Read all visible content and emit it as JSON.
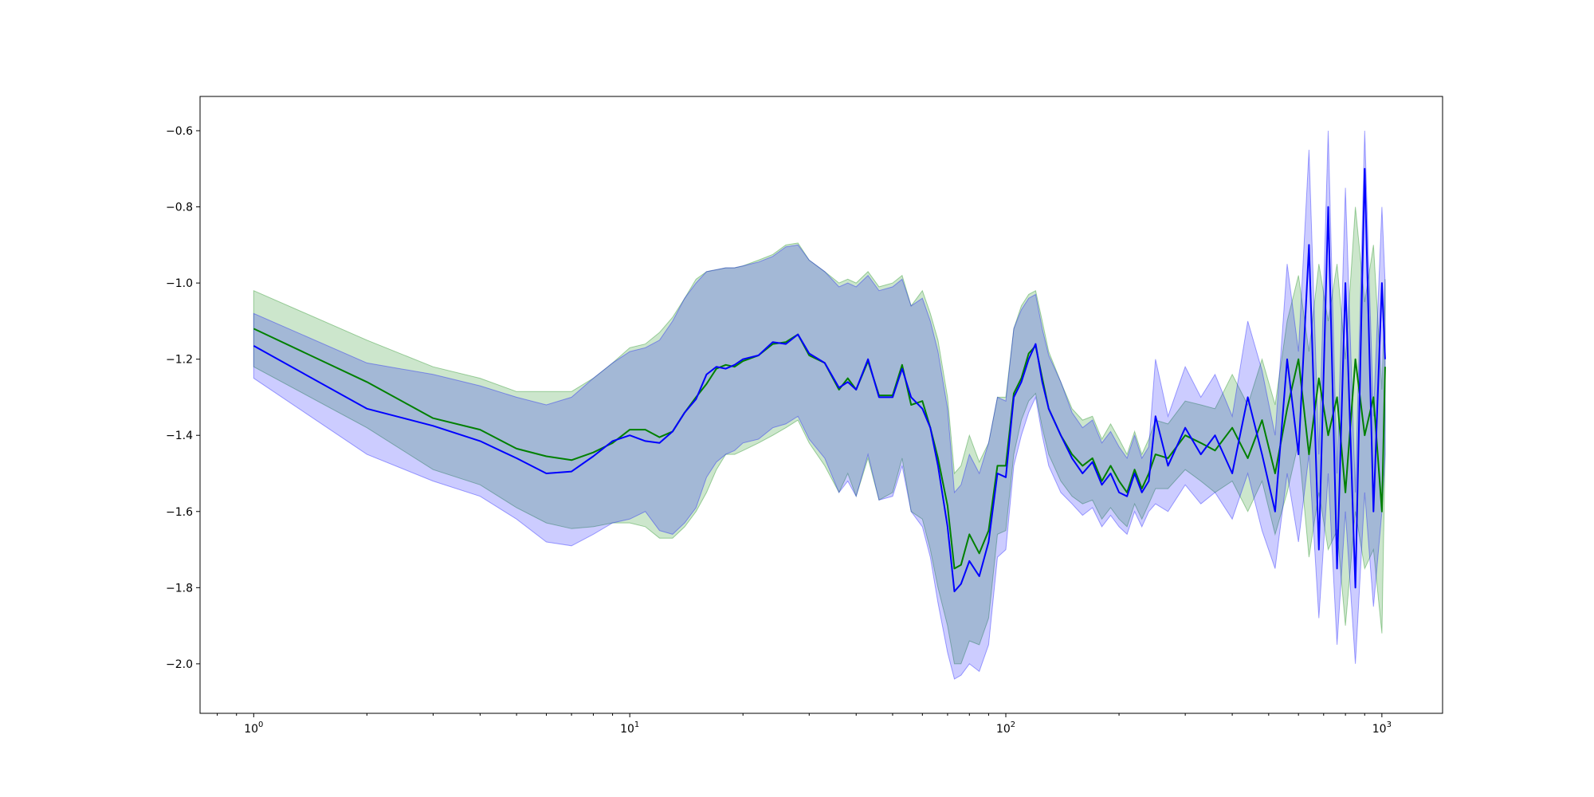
{
  "chart_data": {
    "type": "line",
    "title": "",
    "xlabel": "",
    "ylabel": "",
    "xscale": "log",
    "xlim": [
      0.72,
      1450
    ],
    "ylim": [
      -2.13,
      -0.51
    ],
    "grid": false,
    "legend": "none",
    "x_ticks": [
      {
        "value": 1,
        "base": "10",
        "exp": "0"
      },
      {
        "value": 10,
        "base": "10",
        "exp": "1"
      },
      {
        "value": 100,
        "base": "10",
        "exp": "2"
      },
      {
        "value": 1000,
        "base": "10",
        "exp": "3"
      }
    ],
    "y_ticks": [
      {
        "value": -2.0,
        "label": "−2.0"
      },
      {
        "value": -1.8,
        "label": "−1.8"
      },
      {
        "value": -1.6,
        "label": "−1.6"
      },
      {
        "value": -1.4,
        "label": "−1.4"
      },
      {
        "value": -1.2,
        "label": "−1.2"
      },
      {
        "value": -1.0,
        "label": "−1.0"
      },
      {
        "value": -0.8,
        "label": "−0.8"
      },
      {
        "value": -0.6,
        "label": "−0.6"
      }
    ],
    "series": [
      {
        "color": "#008000",
        "band_color": "#008000",
        "band_opacity": 0.2,
        "x": [
          1,
          2,
          3,
          4,
          5,
          6,
          7,
          8,
          9,
          10,
          11,
          12,
          13,
          14,
          15,
          16,
          17,
          18,
          19,
          20,
          22,
          24,
          26,
          28,
          30,
          33,
          36,
          38,
          40,
          43,
          46,
          50,
          53,
          56,
          60,
          63,
          66,
          70,
          73,
          76,
          80,
          85,
          90,
          95,
          100,
          105,
          110,
          115,
          120,
          125,
          130,
          140,
          150,
          160,
          170,
          180,
          190,
          200,
          210,
          220,
          230,
          240,
          250,
          270,
          300,
          330,
          360,
          400,
          440,
          480,
          520,
          560,
          600,
          640,
          680,
          720,
          760,
          800,
          850,
          900,
          950,
          1000,
          1020
        ],
        "y": [
          -1.12,
          -1.26,
          -1.355,
          -1.385,
          -1.435,
          -1.455,
          -1.465,
          -1.445,
          -1.42,
          -1.385,
          -1.385,
          -1.405,
          -1.39,
          -1.34,
          -1.3,
          -1.265,
          -1.225,
          -1.215,
          -1.22,
          -1.205,
          -1.19,
          -1.16,
          -1.155,
          -1.135,
          -1.19,
          -1.21,
          -1.28,
          -1.25,
          -1.28,
          -1.205,
          -1.295,
          -1.295,
          -1.215,
          -1.32,
          -1.31,
          -1.38,
          -1.46,
          -1.585,
          -1.75,
          -1.74,
          -1.66,
          -1.71,
          -1.65,
          -1.48,
          -1.48,
          -1.29,
          -1.25,
          -1.185,
          -1.165,
          -1.25,
          -1.33,
          -1.4,
          -1.45,
          -1.48,
          -1.46,
          -1.52,
          -1.48,
          -1.52,
          -1.55,
          -1.49,
          -1.54,
          -1.5,
          -1.45,
          -1.46,
          -1.4,
          -1.42,
          -1.44,
          -1.38,
          -1.46,
          -1.36,
          -1.5,
          -1.33,
          -1.2,
          -1.45,
          -1.25,
          -1.4,
          -1.3,
          -1.55,
          -1.2,
          -1.4,
          -1.3,
          -1.6,
          -1.22
        ],
        "lower": [
          -1.22,
          -1.38,
          -1.49,
          -1.53,
          -1.59,
          -1.63,
          -1.645,
          -1.64,
          -1.63,
          -1.63,
          -1.64,
          -1.67,
          -1.67,
          -1.64,
          -1.6,
          -1.55,
          -1.49,
          -1.45,
          -1.45,
          -1.44,
          -1.42,
          -1.4,
          -1.38,
          -1.36,
          -1.42,
          -1.48,
          -1.55,
          -1.5,
          -1.56,
          -1.46,
          -1.57,
          -1.55,
          -1.46,
          -1.6,
          -1.62,
          -1.7,
          -1.8,
          -1.9,
          -2.0,
          -2.0,
          -1.94,
          -1.95,
          -1.88,
          -1.66,
          -1.65,
          -1.45,
          -1.36,
          -1.31,
          -1.29,
          -1.38,
          -1.45,
          -1.52,
          -1.56,
          -1.58,
          -1.57,
          -1.62,
          -1.59,
          -1.62,
          -1.64,
          -1.58,
          -1.62,
          -1.58,
          -1.54,
          -1.54,
          -1.49,
          -1.52,
          -1.55,
          -1.52,
          -1.6,
          -1.52,
          -1.66,
          -1.55,
          -1.42,
          -1.72,
          -1.55,
          -1.7,
          -1.65,
          -1.9,
          -1.6,
          -1.75,
          -1.7,
          -1.92,
          -1.45
        ],
        "upper": [
          -1.02,
          -1.15,
          -1.22,
          -1.25,
          -1.285,
          -1.285,
          -1.285,
          -1.25,
          -1.21,
          -1.17,
          -1.16,
          -1.13,
          -1.09,
          -1.04,
          -0.99,
          -0.97,
          -0.965,
          -0.96,
          -0.96,
          -0.955,
          -0.94,
          -0.925,
          -0.9,
          -0.895,
          -0.94,
          -0.97,
          -1.0,
          -0.99,
          -1.0,
          -0.97,
          -1.01,
          -1.0,
          -0.98,
          -1.06,
          -1.02,
          -1.08,
          -1.15,
          -1.3,
          -1.5,
          -1.48,
          -1.4,
          -1.47,
          -1.42,
          -1.3,
          -1.3,
          -1.12,
          -1.06,
          -1.03,
          -1.02,
          -1.1,
          -1.18,
          -1.26,
          -1.33,
          -1.36,
          -1.35,
          -1.41,
          -1.37,
          -1.41,
          -1.45,
          -1.39,
          -1.45,
          -1.41,
          -1.36,
          -1.37,
          -1.31,
          -1.32,
          -1.33,
          -1.24,
          -1.32,
          -1.2,
          -1.32,
          -1.1,
          -0.98,
          -1.18,
          -0.95,
          -1.1,
          -0.95,
          -1.2,
          -0.8,
          -1.05,
          -0.9,
          -1.28,
          -0.99
        ]
      },
      {
        "color": "#0000ff",
        "band_color": "#0000ff",
        "band_opacity": 0.2,
        "x": [
          1,
          2,
          3,
          4,
          5,
          6,
          7,
          8,
          9,
          10,
          11,
          12,
          13,
          14,
          15,
          16,
          17,
          18,
          19,
          20,
          22,
          24,
          26,
          28,
          30,
          33,
          36,
          38,
          40,
          43,
          46,
          50,
          53,
          56,
          60,
          63,
          66,
          70,
          73,
          76,
          80,
          85,
          90,
          95,
          100,
          105,
          110,
          115,
          120,
          125,
          130,
          140,
          150,
          160,
          170,
          180,
          190,
          200,
          210,
          220,
          230,
          240,
          250,
          270,
          300,
          330,
          360,
          400,
          440,
          480,
          520,
          560,
          600,
          640,
          680,
          720,
          760,
          800,
          850,
          900,
          950,
          1000,
          1020
        ],
        "y": [
          -1.165,
          -1.33,
          -1.375,
          -1.415,
          -1.46,
          -1.5,
          -1.495,
          -1.455,
          -1.415,
          -1.4,
          -1.415,
          -1.42,
          -1.39,
          -1.34,
          -1.305,
          -1.24,
          -1.22,
          -1.225,
          -1.215,
          -1.2,
          -1.19,
          -1.155,
          -1.16,
          -1.135,
          -1.185,
          -1.21,
          -1.275,
          -1.26,
          -1.28,
          -1.2,
          -1.3,
          -1.3,
          -1.225,
          -1.3,
          -1.33,
          -1.38,
          -1.48,
          -1.64,
          -1.81,
          -1.79,
          -1.73,
          -1.77,
          -1.68,
          -1.5,
          -1.51,
          -1.3,
          -1.26,
          -1.2,
          -1.16,
          -1.26,
          -1.33,
          -1.4,
          -1.46,
          -1.5,
          -1.47,
          -1.53,
          -1.5,
          -1.55,
          -1.56,
          -1.5,
          -1.55,
          -1.52,
          -1.35,
          -1.48,
          -1.38,
          -1.45,
          -1.4,
          -1.5,
          -1.3,
          -1.45,
          -1.6,
          -1.2,
          -1.45,
          -0.9,
          -1.7,
          -0.8,
          -1.75,
          -1.0,
          -1.8,
          -0.7,
          -1.6,
          -1.0,
          -1.2
        ],
        "lower": [
          -1.25,
          -1.45,
          -1.52,
          -1.56,
          -1.62,
          -1.68,
          -1.69,
          -1.66,
          -1.63,
          -1.62,
          -1.6,
          -1.65,
          -1.66,
          -1.63,
          -1.59,
          -1.51,
          -1.47,
          -1.45,
          -1.44,
          -1.42,
          -1.41,
          -1.38,
          -1.37,
          -1.35,
          -1.41,
          -1.46,
          -1.55,
          -1.52,
          -1.56,
          -1.45,
          -1.57,
          -1.56,
          -1.48,
          -1.6,
          -1.64,
          -1.72,
          -1.84,
          -1.97,
          -2.04,
          -2.03,
          -2.0,
          -2.02,
          -1.95,
          -1.72,
          -1.7,
          -1.48,
          -1.4,
          -1.34,
          -1.3,
          -1.4,
          -1.48,
          -1.55,
          -1.58,
          -1.61,
          -1.59,
          -1.64,
          -1.61,
          -1.64,
          -1.66,
          -1.6,
          -1.64,
          -1.6,
          -1.58,
          -1.6,
          -1.53,
          -1.58,
          -1.55,
          -1.62,
          -1.5,
          -1.65,
          -1.75,
          -1.5,
          -1.68,
          -1.45,
          -1.88,
          -1.5,
          -1.95,
          -1.6,
          -2.0,
          -1.55,
          -1.85,
          -1.6,
          -1.45
        ],
        "upper": [
          -1.08,
          -1.21,
          -1.24,
          -1.27,
          -1.3,
          -1.32,
          -1.3,
          -1.25,
          -1.21,
          -1.18,
          -1.17,
          -1.15,
          -1.1,
          -1.04,
          -1.0,
          -0.97,
          -0.965,
          -0.96,
          -0.96,
          -0.955,
          -0.945,
          -0.93,
          -0.905,
          -0.9,
          -0.94,
          -0.97,
          -1.01,
          -1.0,
          -1.01,
          -0.98,
          -1.02,
          -1.01,
          -0.99,
          -1.06,
          -1.04,
          -1.1,
          -1.18,
          -1.33,
          -1.55,
          -1.53,
          -1.45,
          -1.5,
          -1.42,
          -1.3,
          -1.31,
          -1.12,
          -1.07,
          -1.04,
          -1.03,
          -1.12,
          -1.19,
          -1.26,
          -1.34,
          -1.38,
          -1.36,
          -1.42,
          -1.39,
          -1.43,
          -1.46,
          -1.4,
          -1.46,
          -1.43,
          -1.2,
          -1.35,
          -1.22,
          -1.3,
          -1.24,
          -1.35,
          -1.1,
          -1.23,
          -1.4,
          -0.95,
          -1.18,
          -0.65,
          -1.45,
          -0.6,
          -1.5,
          -0.75,
          -1.55,
          -0.6,
          -1.35,
          -0.8,
          -1.0
        ]
      }
    ]
  }
}
